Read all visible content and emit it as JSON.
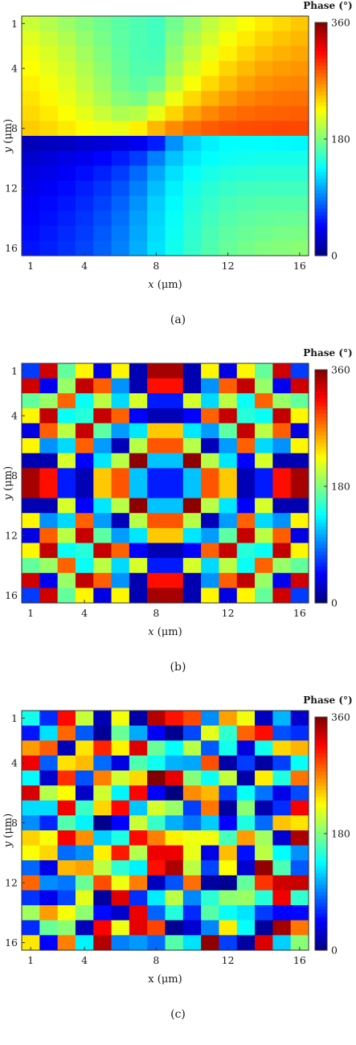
{
  "figure": {
    "captions": [
      "(a)",
      "(b)",
      "(c)"
    ]
  },
  "chart_data": [
    {
      "type": "heatmap",
      "title": "",
      "xlabel": "x (μm)",
      "ylabel": "y (μm)",
      "x_italic": true,
      "grid_size": 16,
      "xticks": [
        1,
        4,
        8,
        12,
        16
      ],
      "yticks": [
        1,
        4,
        8,
        12,
        16
      ],
      "colorbar": {
        "title": "Phase (°)",
        "ticks": [
          0,
          180,
          360
        ],
        "range": [
          0,
          360
        ],
        "colormap": "jet"
      },
      "pattern": "vortex phase, topological charge 1 (phase = azimuthal angle about the centre, 0–360°)",
      "values": [
        [
          206,
          198,
          190,
          182,
          174,
          167,
          162,
          158,
          175,
          188,
          203,
          214,
          224,
          232,
          238,
          244
        ],
        [
          214,
          206,
          197,
          187,
          177,
          168,
          162,
          158,
          180,
          196,
          210,
          222,
          232,
          240,
          246,
          250
        ],
        [
          220,
          212,
          203,
          192,
          181,
          170,
          162,
          160,
          186,
          203,
          218,
          230,
          240,
          248,
          253,
          256
        ],
        [
          225,
          217,
          208,
          197,
          185,
          172,
          164,
          164,
          193,
          212,
          228,
          240,
          249,
          256,
          260,
          262
        ],
        [
          230,
          222,
          213,
          202,
          190,
          176,
          168,
          175,
          203,
          223,
          238,
          249,
          258,
          264,
          267,
          268
        ],
        [
          234,
          227,
          218,
          208,
          196,
          183,
          178,
          194,
          219,
          238,
          251,
          261,
          268,
          272,
          274,
          275
        ],
        [
          238,
          232,
          224,
          216,
          206,
          196,
          200,
          218,
          240,
          256,
          267,
          274,
          278,
          280,
          281,
          282
        ],
        [
          243,
          238,
          232,
          226,
          220,
          218,
          230,
          250,
          266,
          276,
          283,
          286,
          288,
          289,
          290,
          290
        ],
        [
          20,
          22,
          24,
          28,
          30,
          34,
          40,
          55,
          97,
          120,
          130,
          135,
          136,
          135,
          134,
          133
        ],
        [
          28,
          32,
          36,
          40,
          46,
          54,
          66,
          90,
          114,
          128,
          135,
          139,
          141,
          142,
          142,
          142
        ],
        [
          34,
          38,
          43,
          49,
          56,
          66,
          82,
          104,
          124,
          136,
          143,
          147,
          149,
          150,
          150,
          150
        ],
        [
          38,
          43,
          48,
          55,
          63,
          74,
          90,
          112,
          130,
          142,
          149,
          154,
          157,
          158,
          158,
          158
        ],
        [
          42,
          47,
          52,
          59,
          68,
          80,
          97,
          118,
          134,
          146,
          154,
          160,
          163,
          165,
          165,
          165
        ],
        [
          45,
          50,
          56,
          63,
          72,
          84,
          101,
          121,
          137,
          149,
          158,
          164,
          168,
          170,
          171,
          172
        ],
        [
          48,
          53,
          59,
          66,
          76,
          88,
          104,
          123,
          139,
          151,
          161,
          168,
          172,
          175,
          177,
          178
        ],
        [
          51,
          56,
          62,
          69,
          79,
          91,
          107,
          125,
          141,
          153,
          163,
          171,
          176,
          180,
          182,
          184
        ]
      ]
    },
    {
      "type": "heatmap",
      "title": "",
      "xlabel": "x (μm)",
      "ylabel": "y (μm)",
      "x_italic": true,
      "grid_size": 16,
      "xticks": [
        1,
        4,
        8,
        12,
        16
      ],
      "yticks": [
        1,
        4,
        8,
        12,
        16
      ],
      "colorbar": {
        "title": "Phase (°)",
        "ticks": [
          0,
          180,
          360
        ],
        "range": [
          0,
          360
        ],
        "colormap": "jet"
      },
      "pattern": "concentric rings (radial phase, wraps every 360°)",
      "values": [
        [
          66,
          332,
          170,
          228,
          35,
          228,
          18,
          346,
          346,
          18,
          228,
          35,
          228,
          170,
          332,
          66
        ],
        [
          332,
          40,
          189,
          336,
          282,
          97,
          17,
          310,
          310,
          17,
          97,
          282,
          336,
          189,
          40,
          332
        ],
        [
          170,
          189,
          280,
          138,
          201,
          122,
          211,
          54,
          54,
          211,
          122,
          201,
          138,
          280,
          189,
          170
        ],
        [
          228,
          336,
          138,
          148,
          335,
          281,
          45,
          19,
          19,
          45,
          281,
          335,
          148,
          138,
          336,
          228
        ],
        [
          35,
          282,
          201,
          335,
          168,
          100,
          127,
          244,
          244,
          127,
          100,
          168,
          335,
          201,
          282,
          35
        ],
        [
          228,
          97,
          122,
          281,
          100,
          20,
          200,
          285,
          285,
          200,
          20,
          100,
          281,
          122,
          97,
          228
        ],
        [
          18,
          17,
          211,
          45,
          127,
          200,
          355,
          114,
          114,
          355,
          200,
          127,
          45,
          211,
          17,
          18
        ],
        [
          346,
          310,
          54,
          19,
          244,
          285,
          114,
          55,
          55,
          114,
          285,
          244,
          19,
          54,
          310,
          346
        ],
        [
          346,
          310,
          54,
          19,
          244,
          285,
          114,
          55,
          55,
          114,
          285,
          244,
          19,
          54,
          310,
          346
        ],
        [
          18,
          17,
          211,
          45,
          127,
          200,
          355,
          114,
          114,
          355,
          200,
          127,
          45,
          211,
          17,
          18
        ],
        [
          228,
          97,
          122,
          281,
          100,
          20,
          200,
          285,
          285,
          200,
          20,
          100,
          281,
          122,
          97,
          228
        ],
        [
          35,
          282,
          201,
          335,
          168,
          100,
          127,
          244,
          244,
          127,
          100,
          168,
          335,
          201,
          282,
          35
        ],
        [
          228,
          336,
          138,
          148,
          335,
          281,
          45,
          19,
          19,
          45,
          281,
          335,
          148,
          138,
          336,
          228
        ],
        [
          170,
          189,
          280,
          138,
          201,
          122,
          211,
          54,
          54,
          211,
          122,
          201,
          138,
          280,
          189,
          170
        ],
        [
          332,
          40,
          189,
          336,
          282,
          97,
          17,
          310,
          310,
          17,
          97,
          282,
          336,
          189,
          40,
          332
        ],
        [
          66,
          332,
          170,
          228,
          35,
          228,
          18,
          346,
          346,
          18,
          228,
          35,
          228,
          170,
          332,
          66
        ]
      ]
    },
    {
      "type": "heatmap",
      "title": "",
      "xlabel": "x (μm)",
      "ylabel": "y (μm)",
      "x_italic": false,
      "grid_size": 16,
      "xticks": [
        1,
        4,
        8,
        12,
        16
      ],
      "yticks": [
        1,
        4,
        8,
        12,
        16
      ],
      "colorbar": {
        "title": "Phase (°)",
        "ticks": [
          0,
          180,
          360
        ],
        "range": [
          0,
          360
        ],
        "colormap": "jet"
      },
      "pattern": "spiral (rings combined with vortex phase)",
      "values": [
        [
          142,
          60,
          313,
          205,
          19,
          221,
          13,
          341,
          309,
          290,
          95,
          258,
          220,
          22,
          109,
          27
        ],
        [
          52,
          124,
          279,
          76,
          9,
          172,
          105,
          41,
          5,
          70,
          216,
          152,
          280,
          311,
          73,
          61
        ],
        [
          260,
          283,
          19,
          234,
          303,
          229,
          327,
          172,
          136,
          200,
          76,
          142,
          33,
          141,
          239,
          251
        ],
        [
          320,
          78,
          235,
          249,
          83,
          34,
          163,
          140,
          108,
          104,
          287,
          14,
          66,
          12,
          67,
          137
        ],
        [
          134,
          27,
          299,
          74,
          270,
          208,
          238,
          360,
          323,
          182,
          139,
          204,
          14,
          231,
          146,
          274
        ],
        [
          329,
          199,
          225,
          25,
          208,
          132,
          314,
          43,
          0,
          266,
          250,
          66,
          137,
          86,
          37,
          71
        ],
        [
          123,
          123,
          320,
          155,
          239,
          313,
          115,
          209,
          189,
          67,
          273,
          11,
          184,
          17,
          61,
          317
        ],
        [
          95,
          58,
          164,
          132,
          4,
          44,
          206,
          154,
          107,
          86,
          117,
          44,
          145,
          82,
          246,
          234
        ],
        [
          241,
          223,
          317,
          265,
          118,
          145,
          312,
          270,
          230,
          219,
          220,
          160,
          260,
          192,
          28,
          345
        ],
        [
          224,
          239,
          83,
          96,
          230,
          307,
          198,
          321,
          321,
          217,
          35,
          248,
          50,
          201,
          135,
          96
        ],
        [
          81,
          36,
          250,
          258,
          202,
          151,
          130,
          310,
          344,
          201,
          69,
          225,
          28,
          353,
          162,
          76
        ],
        [
          279,
          95,
          87,
          172,
          288,
          219,
          271,
          22,
          74,
          276,
          12,
          6,
          170,
          297,
          332,
          334
        ],
        [
          63,
          39,
          69,
          215,
          11,
          326,
          61,
          129,
          201,
          93,
          150,
          185,
          189,
          148,
          320,
          152
        ],
        [
          192,
          260,
          223,
          185,
          48,
          27,
          322,
          80,
          147,
          59,
          165,
          137,
          126,
          66,
          45,
          47
        ],
        [
          60,
          172,
          184,
          20,
          316,
          219,
          324,
          291,
          6,
          28,
          92,
          231,
          137,
          10,
          348,
          273
        ],
        [
          233,
          45,
          270,
          131,
          342,
          90,
          99,
          83,
          165,
          125,
          354,
          67,
          12,
          327,
          118,
          183
        ]
      ]
    }
  ]
}
